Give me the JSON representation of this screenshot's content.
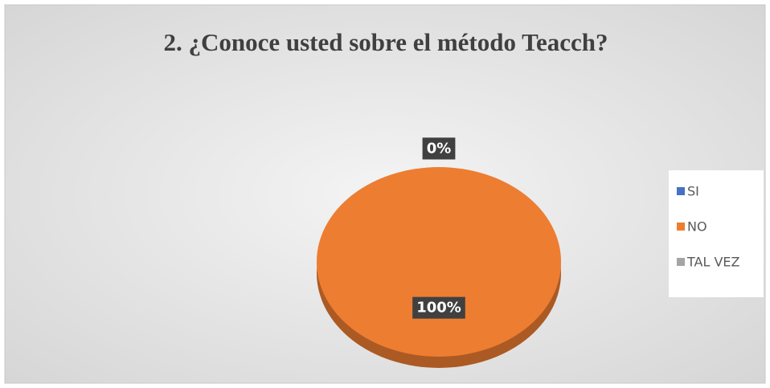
{
  "chart_data": {
    "type": "pie",
    "title": "2. ¿Conoce usted sobre el método Teacch?",
    "categories": [
      "SI",
      "NO",
      "TAL VEZ"
    ],
    "values": [
      0,
      100,
      0
    ],
    "value_labels": [
      "0%",
      "100%",
      "0%"
    ],
    "colors": [
      "#4472c4",
      "#ed7d31",
      "#a5a5a5"
    ],
    "legend": "right"
  }
}
